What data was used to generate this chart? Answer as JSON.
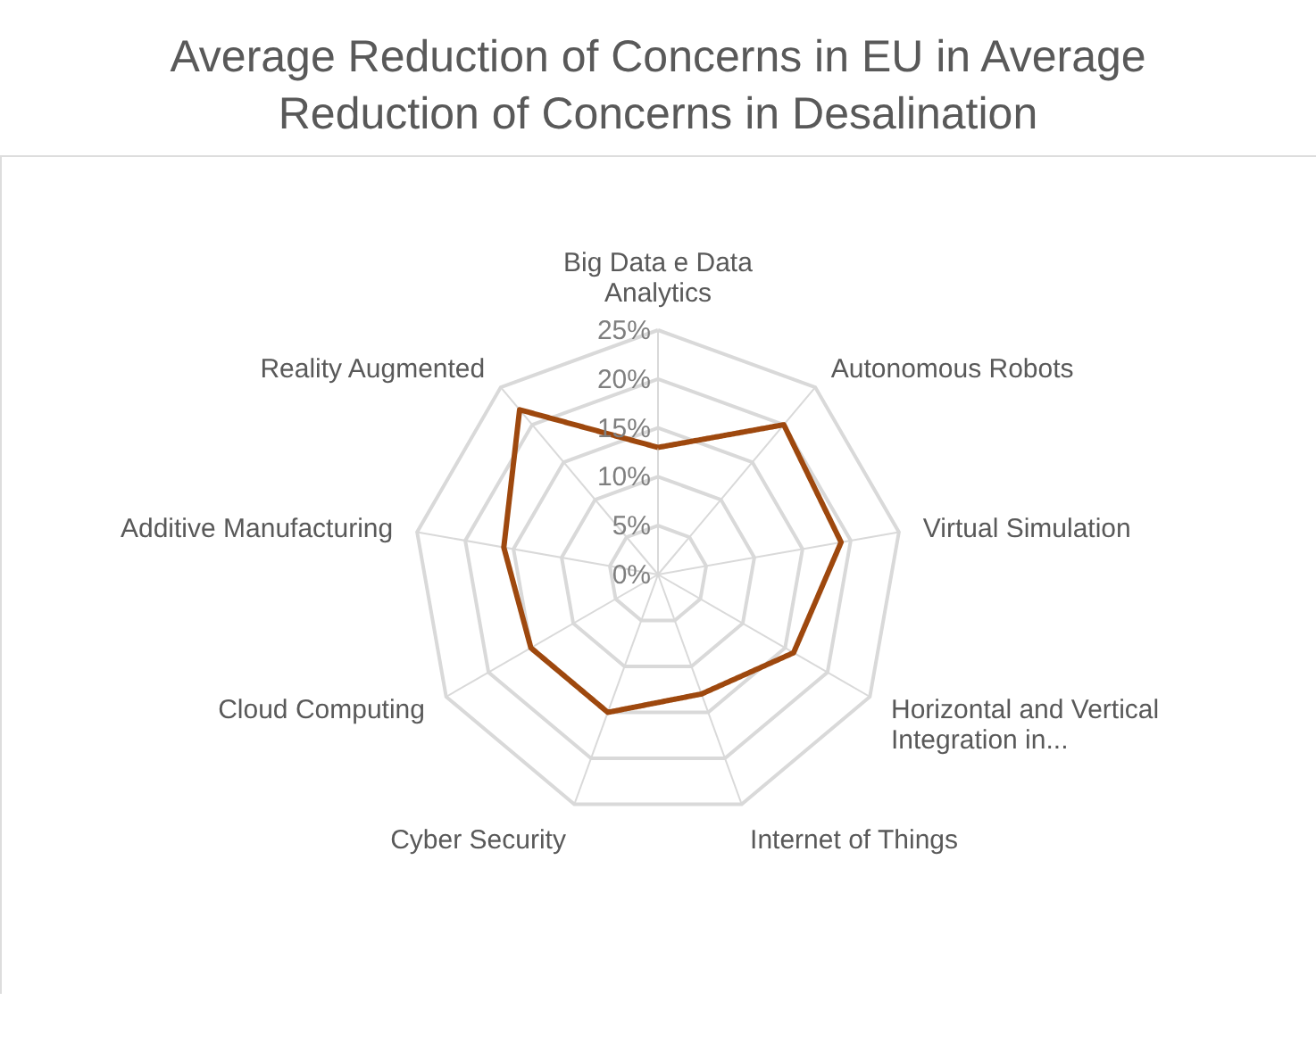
{
  "chart_data": {
    "type": "radar",
    "title": "Average Reduction of Concerns in EU in Average Reduction of Concerns in Desalination",
    "categories": [
      "Big Data e Data Analytics",
      "Autonomous Robots",
      "Virtual Simulation",
      "Horizontal and Vertical Integration in...",
      "Internet of Things",
      "Cyber Security",
      "Cloud Computing",
      "Additive Manufacturing",
      "Reality Augmented"
    ],
    "series": [
      {
        "color": "#9e480e",
        "values": [
          13,
          20,
          19,
          16,
          13,
          15,
          15,
          16,
          22
        ]
      }
    ],
    "ylim": [
      0,
      25
    ],
    "yticks": [
      {
        "value": 0,
        "label": "0%"
      },
      {
        "value": 5,
        "label": "5%"
      },
      {
        "value": 10,
        "label": "10%"
      },
      {
        "value": 15,
        "label": "15%"
      },
      {
        "value": 20,
        "label": "20%"
      },
      {
        "value": 25,
        "label": "25%"
      }
    ],
    "grid": true,
    "marker": "none",
    "line_style": "solid"
  }
}
